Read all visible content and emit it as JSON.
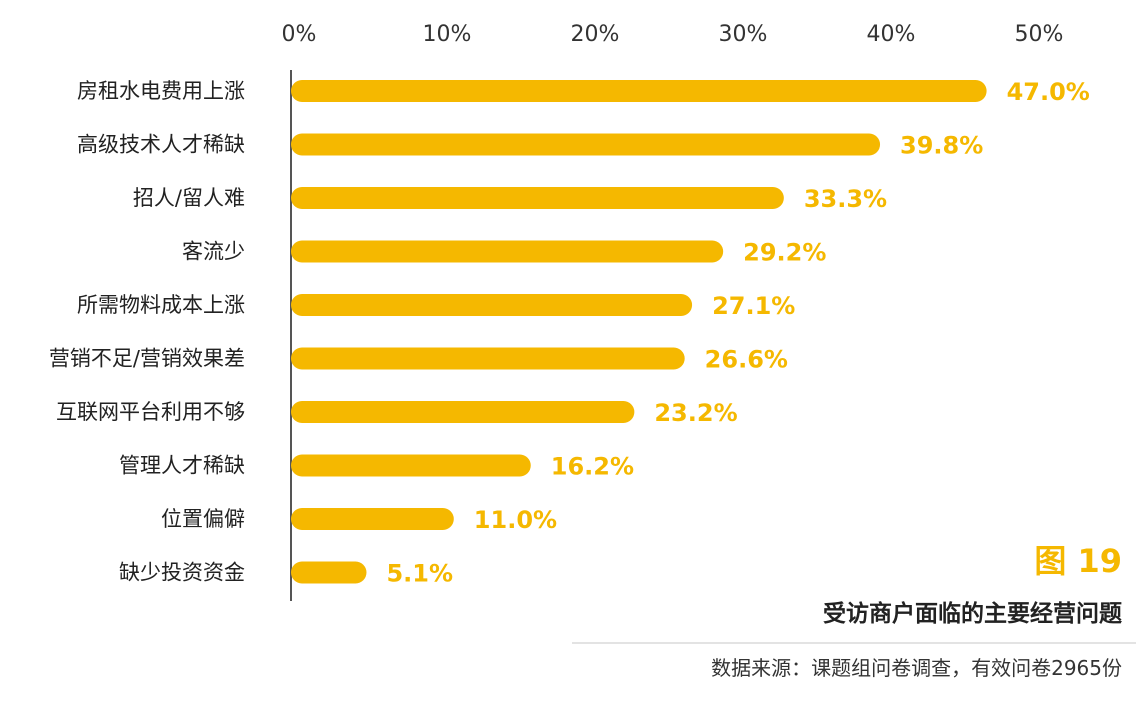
{
  "chart_data": {
    "type": "bar",
    "orientation": "horizontal",
    "categories": [
      "房租水电费用上涨",
      "高级技术人才稀缺",
      "招人/留人难",
      "客流少",
      "所需物料成本上涨",
      "营销不足/营销效果差",
      "互联网平台利用不够",
      "管理人才稀缺",
      "位置偏僻",
      "缺少投资资金"
    ],
    "values": [
      47.0,
      39.8,
      33.3,
      29.2,
      27.1,
      26.6,
      23.2,
      16.2,
      11.0,
      5.1
    ],
    "value_labels": [
      "47.0%",
      "39.8%",
      "33.3%",
      "29.2%",
      "27.1%",
      "26.6%",
      "23.2%",
      "16.2%",
      "11.0%",
      "5.1%"
    ],
    "x_ticks": [
      "0%",
      "10%",
      "20%",
      "30%",
      "40%",
      "50%"
    ],
    "xlim": [
      0,
      50
    ],
    "axis_position": "top",
    "grid": false,
    "bar_color": "#f5b800",
    "label_color": "#f5b800"
  },
  "figure": {
    "label": "图 19",
    "title": "受访商户面临的主要经营问题",
    "source": "数据来源：课题组问卷调查，有效问卷2965份"
  }
}
